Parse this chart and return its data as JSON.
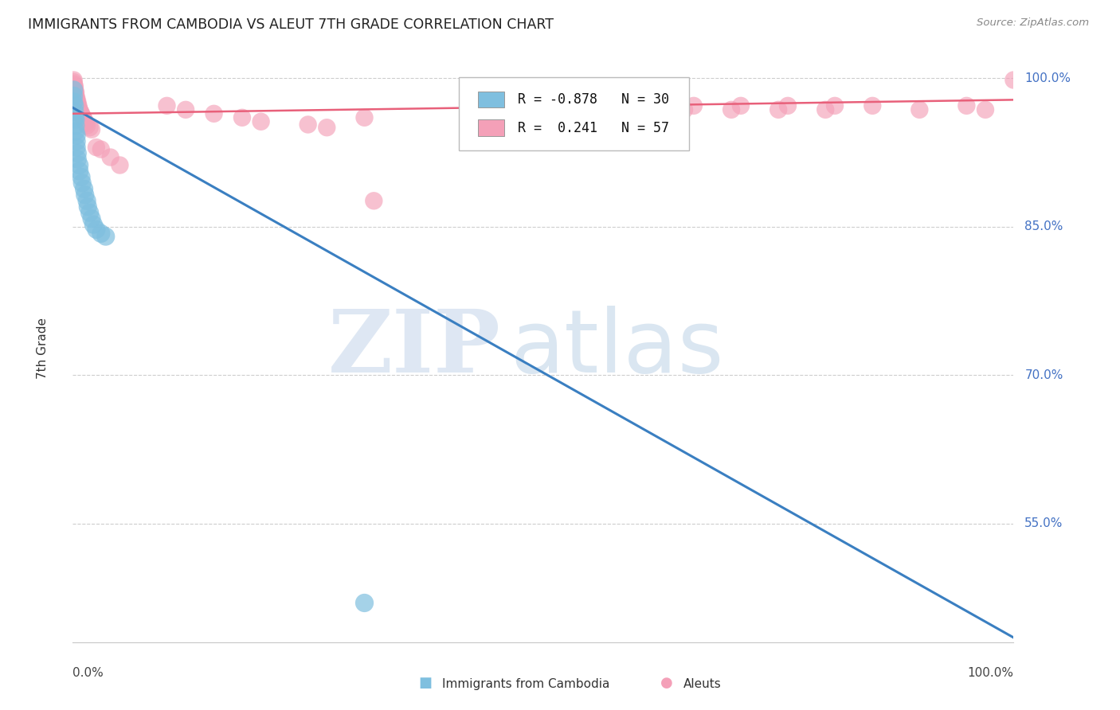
{
  "title": "IMMIGRANTS FROM CAMBODIA VS ALEUT 7TH GRADE CORRELATION CHART",
  "source": "Source: ZipAtlas.com",
  "ylabel": "7th Grade",
  "ytick_labels": [
    "100.0%",
    "85.0%",
    "70.0%",
    "55.0%"
  ],
  "ytick_values": [
    1.0,
    0.85,
    0.7,
    0.55
  ],
  "blue_color": "#7fbfdf",
  "pink_color": "#f4a0b8",
  "blue_line_color": "#3a7fc1",
  "pink_line_color": "#e8607a",
  "blue_scatter": [
    [
      0.001,
      0.988
    ],
    [
      0.001,
      0.982
    ],
    [
      0.001,
      0.976
    ],
    [
      0.002,
      0.972
    ],
    [
      0.002,
      0.966
    ],
    [
      0.002,
      0.96
    ],
    [
      0.003,
      0.958
    ],
    [
      0.003,
      0.952
    ],
    [
      0.003,
      0.946
    ],
    [
      0.004,
      0.942
    ],
    [
      0.004,
      0.936
    ],
    [
      0.004,
      0.93
    ],
    [
      0.005,
      0.924
    ],
    [
      0.005,
      0.918
    ],
    [
      0.007,
      0.912
    ],
    [
      0.007,
      0.906
    ],
    [
      0.009,
      0.9
    ],
    [
      0.01,
      0.894
    ],
    [
      0.012,
      0.888
    ],
    [
      0.013,
      0.882
    ],
    [
      0.015,
      0.876
    ],
    [
      0.016,
      0.87
    ],
    [
      0.018,
      0.864
    ],
    [
      0.02,
      0.858
    ],
    [
      0.022,
      0.852
    ],
    [
      0.025,
      0.847
    ],
    [
      0.03,
      0.843
    ],
    [
      0.035,
      0.84
    ],
    [
      0.31,
      0.47
    ]
  ],
  "pink_scatter": [
    [
      0.001,
      0.998
    ],
    [
      0.001,
      0.996
    ],
    [
      0.001,
      0.994
    ],
    [
      0.002,
      0.992
    ],
    [
      0.002,
      0.99
    ],
    [
      0.002,
      0.988
    ],
    [
      0.003,
      0.986
    ],
    [
      0.003,
      0.984
    ],
    [
      0.003,
      0.982
    ],
    [
      0.004,
      0.98
    ],
    [
      0.004,
      0.978
    ],
    [
      0.005,
      0.976
    ],
    [
      0.005,
      0.974
    ],
    [
      0.006,
      0.972
    ],
    [
      0.006,
      0.97
    ],
    [
      0.007,
      0.968
    ],
    [
      0.008,
      0.966
    ],
    [
      0.009,
      0.964
    ],
    [
      0.01,
      0.962
    ],
    [
      0.011,
      0.96
    ],
    [
      0.012,
      0.958
    ],
    [
      0.013,
      0.956
    ],
    [
      0.014,
      0.954
    ],
    [
      0.015,
      0.952
    ],
    [
      0.018,
      0.95
    ],
    [
      0.02,
      0.948
    ],
    [
      0.025,
      0.93
    ],
    [
      0.03,
      0.928
    ],
    [
      0.04,
      0.92
    ],
    [
      0.05,
      0.912
    ],
    [
      0.1,
      0.972
    ],
    [
      0.12,
      0.968
    ],
    [
      0.15,
      0.964
    ],
    [
      0.18,
      0.96
    ],
    [
      0.2,
      0.956
    ],
    [
      0.25,
      0.953
    ],
    [
      0.27,
      0.95
    ],
    [
      0.31,
      0.96
    ],
    [
      0.32,
      0.876
    ],
    [
      0.5,
      0.968
    ],
    [
      0.52,
      0.972
    ],
    [
      0.53,
      0.964
    ],
    [
      0.6,
      0.968
    ],
    [
      0.61,
      0.972
    ],
    [
      0.65,
      0.968
    ],
    [
      0.66,
      0.972
    ],
    [
      0.7,
      0.968
    ],
    [
      0.71,
      0.972
    ],
    [
      0.75,
      0.968
    ],
    [
      0.76,
      0.972
    ],
    [
      0.8,
      0.968
    ],
    [
      0.81,
      0.972
    ],
    [
      0.85,
      0.972
    ],
    [
      0.9,
      0.968
    ],
    [
      0.95,
      0.972
    ],
    [
      0.97,
      0.968
    ],
    [
      1.0,
      0.998
    ]
  ],
  "blue_line_x0": 0.0,
  "blue_line_y0": 0.97,
  "blue_line_x1": 1.0,
  "blue_line_y1": 0.435,
  "pink_line_x0": 0.0,
  "pink_line_y0": 0.964,
  "pink_line_x1": 1.0,
  "pink_line_y1": 0.978,
  "watermark_zip": "ZIP",
  "watermark_atlas": "atlas",
  "background_color": "#ffffff",
  "grid_color": "#c8c8c8",
  "xlim": [
    0.0,
    1.0
  ],
  "ylim": [
    0.43,
    1.025
  ]
}
